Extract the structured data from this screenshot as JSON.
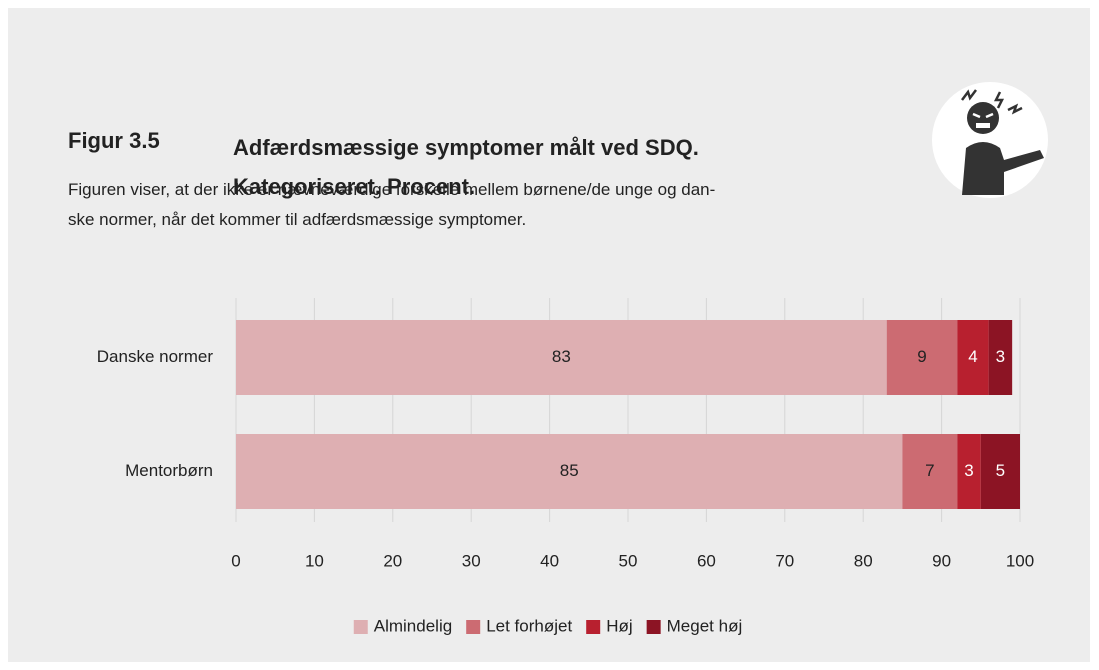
{
  "chart_data": {
    "type": "stacked_barh",
    "figure_label": "Figur 3.5",
    "title": "Adfærdsmæssige symptomer målt ved SDQ. Kategoriseret. Procent.",
    "subtitle_lines": [
      "Figuren viser, at der ikke er nævneværdige forskelle mellem børnene/de unge og dan-",
      "ske normer, når det kommer til adfærdsmæssige symptomer."
    ],
    "categories": [
      "Danske normer",
      "Mentorbørn"
    ],
    "series": [
      {
        "name": "Almindelig",
        "color": "#deafb2",
        "values": [
          83,
          85
        ]
      },
      {
        "name": "Let forhøjet",
        "color": "#cc6b72",
        "values": [
          9,
          7
        ]
      },
      {
        "name": "Høj",
        "color": "#b8202f",
        "values": [
          4,
          3
        ]
      },
      {
        "name": "Meget høj",
        "color": "#8c1424",
        "values": [
          3,
          5
        ]
      }
    ],
    "xlim": [
      0,
      100
    ],
    "xticks": [
      0,
      10,
      20,
      30,
      40,
      50,
      60,
      70,
      80,
      90,
      100
    ],
    "grid": true,
    "legend": "bottom"
  }
}
